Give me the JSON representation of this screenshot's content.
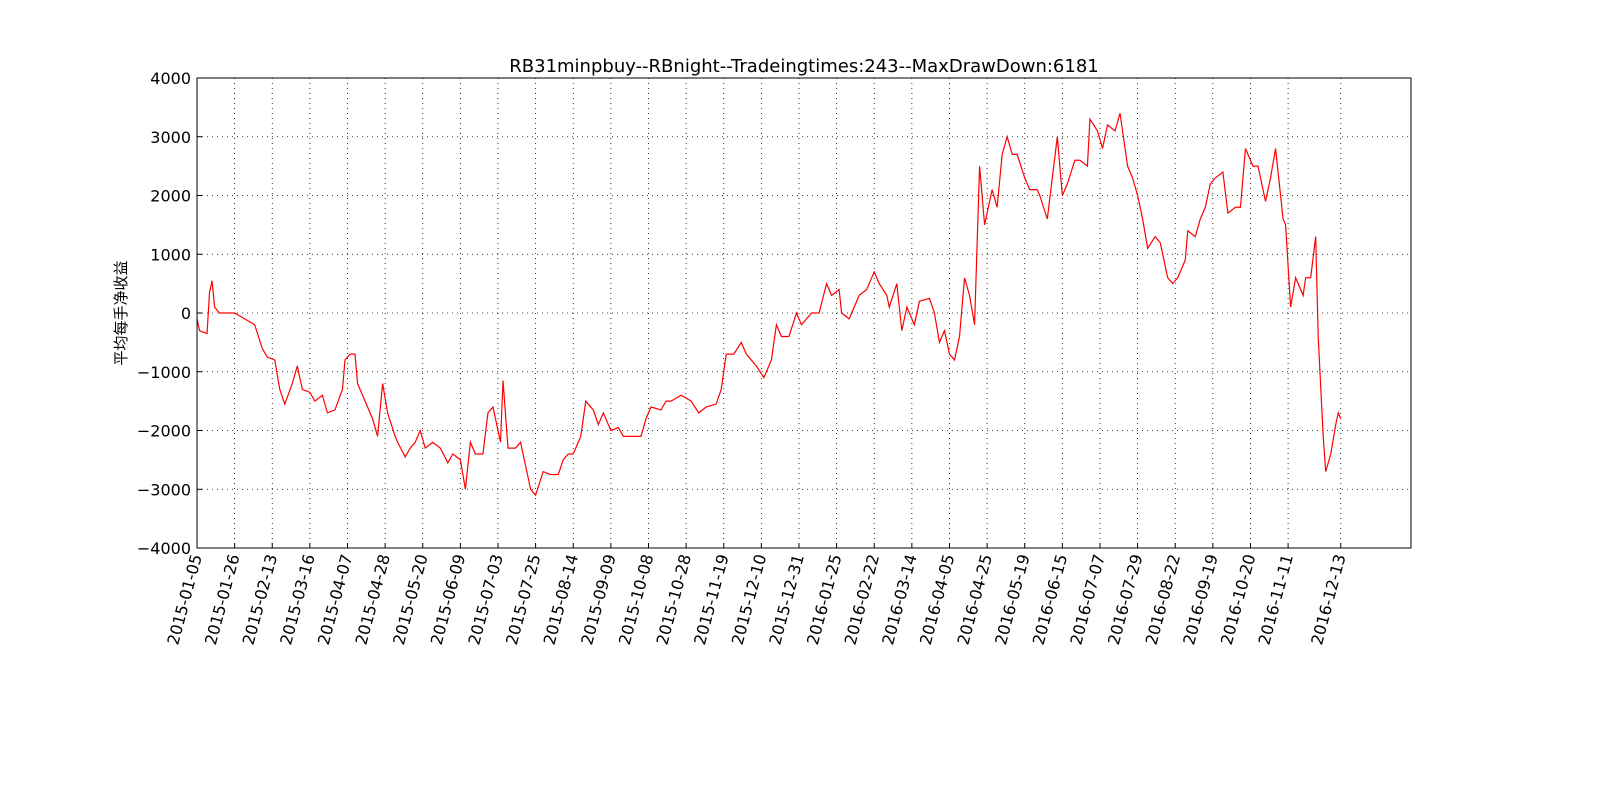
{
  "chart_data": {
    "type": "line",
    "title": "RB31minpbuy--RBnight--Tradeingtimes:243--MaxDrawDown:6181",
    "y_label": "平均每手净收益",
    "x": [
      0,
      1,
      4,
      5,
      6,
      7,
      9,
      11,
      15,
      19,
      23,
      26,
      28,
      31,
      33,
      35,
      38,
      40,
      42,
      45,
      47,
      50,
      52,
      55,
      58,
      59,
      61,
      63,
      64,
      67,
      70,
      72,
      74,
      76,
      79,
      80,
      83,
      85,
      87,
      89,
      91,
      94,
      97,
      100,
      102,
      105,
      107,
      109,
      111,
      114,
      116,
      118,
      121,
      122,
      124,
      127,
      129,
      131,
      133,
      135,
      138,
      141,
      144,
      146,
      148,
      150,
      153,
      155,
      158,
      160,
      162,
      165,
      168,
      170,
      174,
      177,
      179,
      181,
      185,
      187,
      189,
      193,
      197,
      200,
      203,
      207,
      209,
      211,
      214,
      217,
      219,
      223,
      226,
      229,
      231,
      233,
      236,
      239,
      241,
      243,
      245,
      248,
      251,
      253,
      256,
      257,
      260,
      262,
      264,
      267,
      270,
      272,
      275,
      276,
      279,
      281,
      283,
      286,
      288,
      292,
      294,
      296,
      298,
      300,
      302,
      304,
      306,
      308,
      310,
      312,
      314,
      317,
      319,
      321,
      323,
      325,
      327,
      330,
      332,
      335,
      336,
      339,
      341,
      343,
      345,
      347,
      350,
      352,
      355,
      356,
      359,
      361,
      363,
      366,
      368,
      371,
      373,
      375,
      377,
      379,
      382,
      384,
      387,
      389,
      391,
      394,
      395,
      398,
      400,
      402,
      404,
      406,
      409,
      411,
      414,
      416,
      418,
      421,
      423,
      426,
      428,
      430,
      433,
      434,
      436,
      438,
      441,
      442,
      444,
      446,
      447,
      449,
      450,
      452,
      454,
      455,
      456
    ],
    "series": [
      {
        "color": "#ff0000",
        "values": [
          -100,
          -300,
          -350,
          350,
          550,
          100,
          0,
          0,
          0,
          -100,
          -200,
          -600,
          -750,
          -800,
          -1300,
          -1550,
          -1200,
          -900,
          -1300,
          -1350,
          -1500,
          -1400,
          -1700,
          -1650,
          -1300,
          -800,
          -700,
          -700,
          -1200,
          -1500,
          -1800,
          -2100,
          -1200,
          -1700,
          -2100,
          -2200,
          -2450,
          -2300,
          -2200,
          -2000,
          -2300,
          -2200,
          -2300,
          -2550,
          -2400,
          -2500,
          -3000,
          -2200,
          -2400,
          -2400,
          -1700,
          -1600,
          -2200,
          -1150,
          -2300,
          -2300,
          -2200,
          -2600,
          -3000,
          -3100,
          -2700,
          -2750,
          -2750,
          -2500,
          -2400,
          -2400,
          -2100,
          -1500,
          -1650,
          -1900,
          -1700,
          -2000,
          -1950,
          -2100,
          -2100,
          -2100,
          -1800,
          -1600,
          -1650,
          -1500,
          -1500,
          -1400,
          -1500,
          -1700,
          -1600,
          -1550,
          -1300,
          -700,
          -700,
          -500,
          -700,
          -900,
          -1100,
          -800,
          -200,
          -400,
          -400,
          0,
          -200,
          -100,
          0,
          0,
          500,
          300,
          400,
          0,
          -100,
          100,
          300,
          400,
          700,
          500,
          300,
          100,
          500,
          -300,
          100,
          -200,
          200,
          250,
          0,
          -500,
          -300,
          -700,
          -800,
          -400,
          600,
          300,
          -200,
          2500,
          1500,
          2100,
          1800,
          2700,
          3000,
          2700,
          2700,
          2300,
          2100,
          2100,
          2000,
          1600,
          2300,
          3000,
          2000,
          2200,
          2600,
          2600,
          2500,
          3300,
          3100,
          2800,
          3200,
          3100,
          3400,
          2500,
          2300,
          2000,
          1600,
          1100,
          1300,
          1200,
          600,
          500,
          600,
          900,
          1400,
          1300,
          1600,
          1800,
          2200,
          2300,
          2400,
          1700,
          1800,
          1800,
          2800,
          2500,
          2500,
          1900,
          2300,
          2800,
          1600,
          1500,
          100,
          600,
          300,
          600,
          600,
          1300,
          -400,
          -2100,
          -2700,
          -2400,
          -1900,
          -1700,
          -1800
        ]
      }
    ],
    "xlim": [
      0,
      484
    ],
    "xticks": [
      {
        "value": 0,
        "label": "2015-01-05"
      },
      {
        "value": 15,
        "label": "2015-01-26"
      },
      {
        "value": 30,
        "label": "2015-02-13"
      },
      {
        "value": 45,
        "label": "2015-03-16"
      },
      {
        "value": 60,
        "label": "2015-04-07"
      },
      {
        "value": 75,
        "label": "2015-04-28"
      },
      {
        "value": 90,
        "label": "2015-05-20"
      },
      {
        "value": 105,
        "label": "2015-06-09"
      },
      {
        "value": 120,
        "label": "2015-07-03"
      },
      {
        "value": 135,
        "label": "2015-07-25"
      },
      {
        "value": 150,
        "label": "2015-08-14"
      },
      {
        "value": 165,
        "label": "2015-09-09"
      },
      {
        "value": 180,
        "label": "2015-10-08"
      },
      {
        "value": 195,
        "label": "2015-10-28"
      },
      {
        "value": 210,
        "label": "2015-11-19"
      },
      {
        "value": 225,
        "label": "2015-12-10"
      },
      {
        "value": 240,
        "label": "2015-12-31"
      },
      {
        "value": 255,
        "label": "2016-01-25"
      },
      {
        "value": 270,
        "label": "2016-02-22"
      },
      {
        "value": 285,
        "label": "2016-03-14"
      },
      {
        "value": 300,
        "label": "2016-04-05"
      },
      {
        "value": 315,
        "label": "2016-04-25"
      },
      {
        "value": 330,
        "label": "2016-05-19"
      },
      {
        "value": 345,
        "label": "2016-06-15"
      },
      {
        "value": 360,
        "label": "2016-07-07"
      },
      {
        "value": 375,
        "label": "2016-07-29"
      },
      {
        "value": 390,
        "label": "2016-08-22"
      },
      {
        "value": 405,
        "label": "2016-09-19"
      },
      {
        "value": 420,
        "label": "2016-10-20"
      },
      {
        "value": 435,
        "label": "2016-11-11"
      },
      {
        "value": 456,
        "label": "2016-12-13"
      }
    ],
    "ylim": [
      -4000,
      4000
    ],
    "yticks": [
      {
        "value": -4000,
        "label": "−4000"
      },
      {
        "value": -3000,
        "label": "−3000"
      },
      {
        "value": -2000,
        "label": "−2000"
      },
      {
        "value": -1000,
        "label": "−1000"
      },
      0,
      1000,
      2000,
      3000,
      4000
    ],
    "grid": true
  }
}
